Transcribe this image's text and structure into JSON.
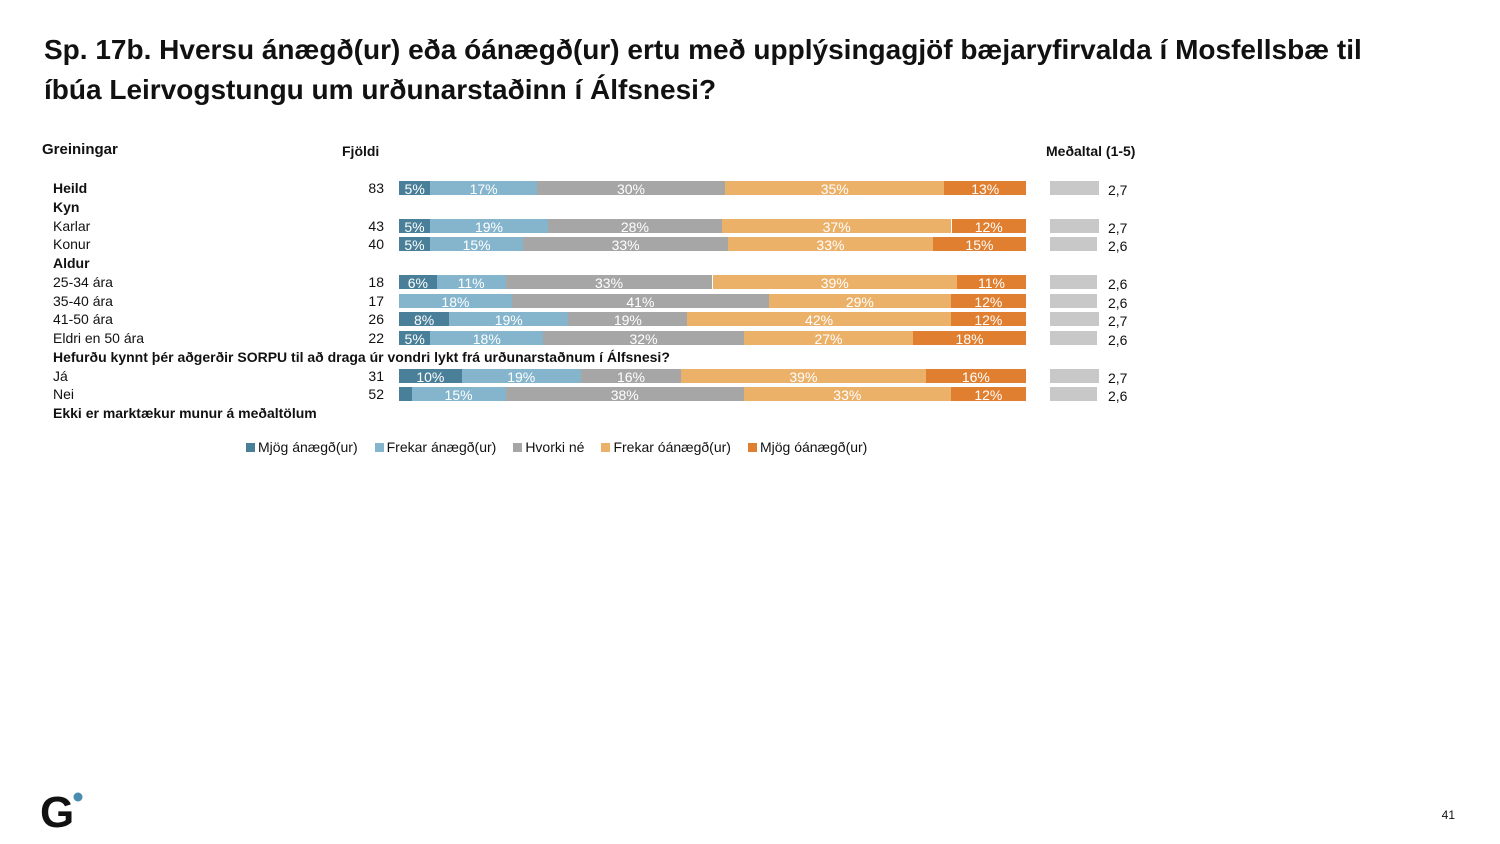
{
  "title": "Sp. 17b. Hversu ánægð(ur) eða óánægð(ur) ertu með upplýsingagjöf bæjaryfirvalda í Mosfellsbæ til íbúa Leirvogstungu um urðunarstaðinn í Álfsnesi?",
  "headers": {
    "groups": "Greiningar",
    "count": "Fjöldi",
    "mean": "Meðaltal (1-5)"
  },
  "page_number": "41",
  "logo": "G",
  "chart_data": {
    "type": "bar",
    "orientation": "horizontal-stacked-100",
    "series": [
      {
        "name": "Mjög ánægð(ur)",
        "color": "#4a7f99"
      },
      {
        "name": "Frekar ánægð(ur)",
        "color": "#84b5cc"
      },
      {
        "name": "Hvorki né",
        "color": "#a6a6a6"
      },
      {
        "name": "Frekar óánægð(ur)",
        "color": "#ecb169"
      },
      {
        "name": "Mjög óánægð(ur)",
        "color": "#e07f2f"
      }
    ],
    "mean_bar_color": "#c8c8c8",
    "rows": [
      {
        "label": "Heild",
        "bold": true,
        "n": "83",
        "values": [
          5,
          17,
          30,
          35,
          13
        ],
        "mean": "2,7"
      },
      {
        "label": "Kyn",
        "bold": true
      },
      {
        "label": "Karlar",
        "n": "43",
        "values": [
          5,
          19,
          28,
          37,
          12
        ],
        "mean": "2,7"
      },
      {
        "label": "Konur",
        "n": "40",
        "values": [
          5,
          15,
          33,
          33,
          15
        ],
        "mean": "2,6"
      },
      {
        "label": "Aldur",
        "bold": true
      },
      {
        "label": "25-34 ára",
        "n": "18",
        "values": [
          6,
          11,
          33,
          39,
          11
        ],
        "mean": "2,6"
      },
      {
        "label": "35-40 ára",
        "n": "17",
        "values": [
          0,
          18,
          41,
          29,
          12
        ],
        "mean": "2,6"
      },
      {
        "label": "41-50 ára",
        "n": "26",
        "values": [
          8,
          19,
          19,
          42,
          12
        ],
        "mean": "2,7"
      },
      {
        "label": "Eldri en 50 ára",
        "n": "22",
        "values": [
          5,
          18,
          32,
          27,
          18
        ],
        "mean": "2,6"
      },
      {
        "label": "Hefurðu kynnt þér aðgerðir SORPU til að draga úr vondri lykt frá urðunarstaðnum í Álfsnesi?",
        "bold": true
      },
      {
        "label": "Já",
        "n": "31",
        "values": [
          10,
          19,
          16,
          39,
          16
        ],
        "mean": "2,7"
      },
      {
        "label": "Nei",
        "n": "52",
        "values": [
          2,
          15,
          38,
          33,
          12
        ],
        "hide_labels_below": 3,
        "mean": "2,6"
      },
      {
        "label": "Ekki er marktækur munur á meðaltölum",
        "bold": true
      }
    ]
  }
}
